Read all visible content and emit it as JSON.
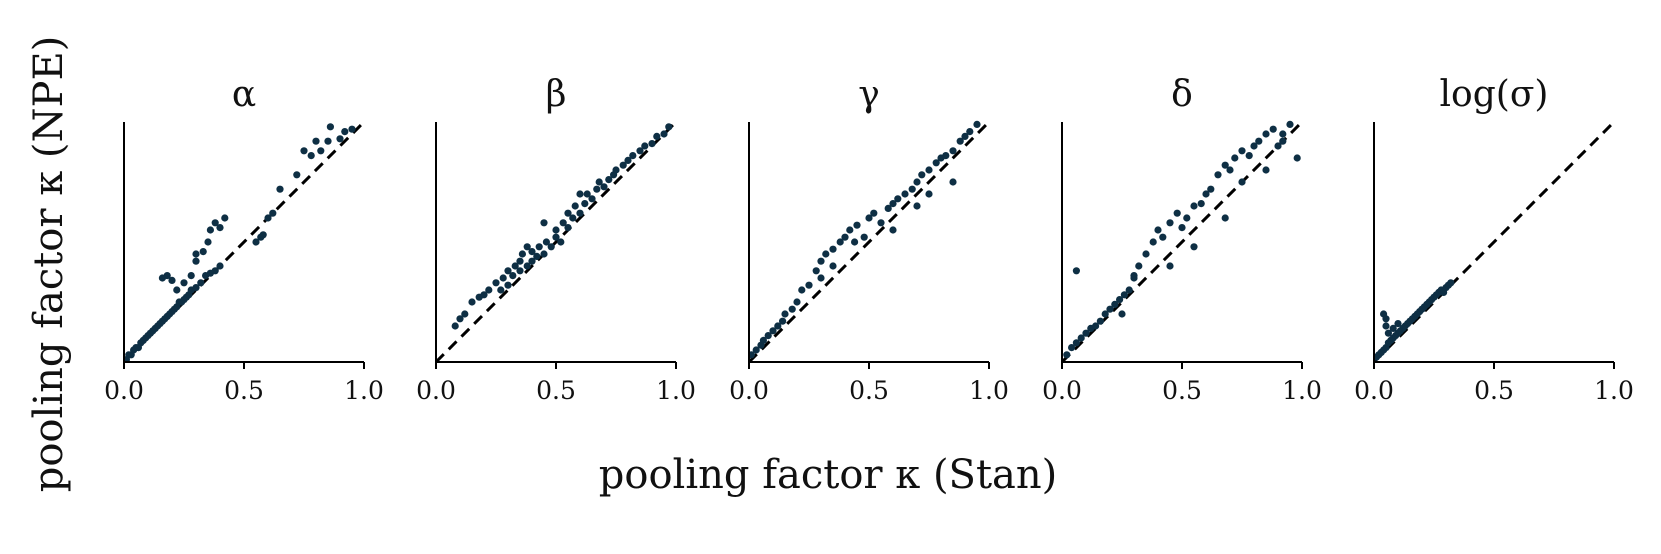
{
  "figure": {
    "xlabel": "pooling factor κ (Stan)",
    "ylabel": "pooling factor κ (NPE)",
    "point_color": "#0e2f44",
    "line_color": "#000000"
  },
  "chart_data": [
    {
      "type": "scatter",
      "title": "α",
      "xlim": [
        0,
        1
      ],
      "ylim": [
        0,
        1
      ],
      "xticks": [
        "0.0",
        "0.5",
        "1.0"
      ],
      "reference_line": "y = x (dashed)",
      "x": [
        0.01,
        0.02,
        0.03,
        0.04,
        0.05,
        0.06,
        0.07,
        0.08,
        0.09,
        0.1,
        0.11,
        0.12,
        0.13,
        0.14,
        0.15,
        0.16,
        0.17,
        0.18,
        0.19,
        0.2,
        0.21,
        0.22,
        0.23,
        0.24,
        0.25,
        0.26,
        0.27,
        0.28,
        0.3,
        0.32,
        0.34,
        0.36,
        0.38,
        0.4,
        0.16,
        0.18,
        0.2,
        0.22,
        0.25,
        0.28,
        0.3,
        0.33,
        0.36,
        0.38,
        0.4,
        0.42,
        0.3,
        0.35,
        0.55,
        0.57,
        0.58,
        0.6,
        0.62,
        0.65,
        0.72,
        0.75,
        0.78,
        0.8,
        0.82,
        0.85,
        0.86,
        0.9,
        0.92,
        0.95
      ],
      "y": [
        0.01,
        0.03,
        0.03,
        0.05,
        0.06,
        0.06,
        0.08,
        0.09,
        0.1,
        0.11,
        0.12,
        0.13,
        0.14,
        0.15,
        0.16,
        0.17,
        0.18,
        0.19,
        0.2,
        0.21,
        0.22,
        0.23,
        0.25,
        0.25,
        0.26,
        0.27,
        0.28,
        0.3,
        0.31,
        0.33,
        0.36,
        0.37,
        0.38,
        0.4,
        0.35,
        0.36,
        0.34,
        0.3,
        0.33,
        0.36,
        0.42,
        0.46,
        0.55,
        0.58,
        0.56,
        0.6,
        0.45,
        0.5,
        0.5,
        0.52,
        0.53,
        0.6,
        0.62,
        0.72,
        0.78,
        0.88,
        0.86,
        0.92,
        0.88,
        0.92,
        0.98,
        0.93,
        0.96,
        0.97
      ]
    },
    {
      "type": "scatter",
      "title": "β",
      "xlim": [
        0,
        1
      ],
      "ylim": [
        0,
        1
      ],
      "xticks": [
        "0.0",
        "0.5",
        "1.0"
      ],
      "reference_line": "y = x (dashed)",
      "x": [
        0.08,
        0.1,
        0.12,
        0.15,
        0.18,
        0.2,
        0.22,
        0.25,
        0.27,
        0.28,
        0.3,
        0.3,
        0.32,
        0.33,
        0.35,
        0.35,
        0.36,
        0.38,
        0.4,
        0.4,
        0.42,
        0.43,
        0.45,
        0.46,
        0.48,
        0.5,
        0.5,
        0.52,
        0.53,
        0.55,
        0.55,
        0.57,
        0.58,
        0.6,
        0.62,
        0.63,
        0.65,
        0.67,
        0.68,
        0.7,
        0.72,
        0.74,
        0.75,
        0.78,
        0.8,
        0.82,
        0.85,
        0.87,
        0.9,
        0.92,
        0.95,
        0.97,
        0.6,
        0.45,
        0.38
      ],
      "y": [
        0.15,
        0.18,
        0.2,
        0.25,
        0.27,
        0.28,
        0.3,
        0.33,
        0.3,
        0.35,
        0.32,
        0.38,
        0.36,
        0.4,
        0.38,
        0.42,
        0.45,
        0.4,
        0.42,
        0.46,
        0.44,
        0.48,
        0.45,
        0.5,
        0.48,
        0.52,
        0.55,
        0.5,
        0.58,
        0.56,
        0.62,
        0.6,
        0.65,
        0.62,
        0.66,
        0.7,
        0.68,
        0.72,
        0.75,
        0.73,
        0.76,
        0.78,
        0.8,
        0.82,
        0.84,
        0.86,
        0.88,
        0.9,
        0.91,
        0.94,
        0.95,
        0.98,
        0.7,
        0.58,
        0.48
      ]
    },
    {
      "type": "scatter",
      "title": "γ",
      "xlim": [
        0,
        1
      ],
      "ylim": [
        0,
        1
      ],
      "xticks": [
        "0.0",
        "0.5",
        "1.0"
      ],
      "reference_line": "y = x (dashed)",
      "x": [
        0.01,
        0.03,
        0.05,
        0.06,
        0.08,
        0.1,
        0.12,
        0.14,
        0.15,
        0.18,
        0.2,
        0.22,
        0.25,
        0.28,
        0.3,
        0.32,
        0.35,
        0.38,
        0.4,
        0.42,
        0.44,
        0.45,
        0.48,
        0.5,
        0.52,
        0.55,
        0.58,
        0.6,
        0.62,
        0.65,
        0.68,
        0.7,
        0.72,
        0.75,
        0.78,
        0.8,
        0.82,
        0.85,
        0.88,
        0.9,
        0.92,
        0.95,
        0.3,
        0.35,
        0.6,
        0.7,
        0.75,
        0.85
      ],
      "y": [
        0.03,
        0.05,
        0.07,
        0.09,
        0.11,
        0.13,
        0.15,
        0.17,
        0.2,
        0.22,
        0.25,
        0.3,
        0.32,
        0.38,
        0.42,
        0.45,
        0.47,
        0.5,
        0.52,
        0.55,
        0.5,
        0.57,
        0.52,
        0.6,
        0.62,
        0.58,
        0.64,
        0.66,
        0.68,
        0.7,
        0.72,
        0.75,
        0.78,
        0.8,
        0.83,
        0.85,
        0.86,
        0.88,
        0.92,
        0.94,
        0.96,
        0.99,
        0.35,
        0.4,
        0.55,
        0.65,
        0.7,
        0.75
      ]
    },
    {
      "type": "scatter",
      "title": "δ",
      "xlim": [
        0,
        1
      ],
      "ylim": [
        0,
        1
      ],
      "xticks": [
        "0.0",
        "0.5",
        "1.0"
      ],
      "reference_line": "y = x (dashed)",
      "x": [
        0.02,
        0.04,
        0.06,
        0.08,
        0.1,
        0.12,
        0.14,
        0.16,
        0.18,
        0.2,
        0.22,
        0.24,
        0.26,
        0.28,
        0.3,
        0.32,
        0.35,
        0.38,
        0.4,
        0.42,
        0.45,
        0.48,
        0.5,
        0.52,
        0.55,
        0.58,
        0.6,
        0.62,
        0.65,
        0.68,
        0.7,
        0.72,
        0.75,
        0.78,
        0.8,
        0.82,
        0.85,
        0.88,
        0.9,
        0.92,
        0.95,
        0.98,
        0.06,
        0.25,
        0.3,
        0.45,
        0.55,
        0.68,
        0.75,
        0.85,
        0.92
      ],
      "y": [
        0.03,
        0.06,
        0.08,
        0.1,
        0.12,
        0.14,
        0.15,
        0.17,
        0.2,
        0.22,
        0.24,
        0.26,
        0.28,
        0.3,
        0.36,
        0.4,
        0.45,
        0.5,
        0.55,
        0.52,
        0.58,
        0.62,
        0.56,
        0.6,
        0.65,
        0.66,
        0.7,
        0.72,
        0.78,
        0.82,
        0.8,
        0.85,
        0.88,
        0.86,
        0.9,
        0.92,
        0.95,
        0.97,
        0.9,
        0.95,
        0.99,
        0.85,
        0.38,
        0.2,
        0.35,
        0.4,
        0.48,
        0.6,
        0.75,
        0.8,
        0.92
      ]
    },
    {
      "type": "scatter",
      "title": "log(σ)",
      "xlim": [
        0,
        1
      ],
      "ylim": [
        0,
        1
      ],
      "xticks": [
        "0.0",
        "0.5",
        "1.0"
      ],
      "reference_line": "y = x (dashed)",
      "x": [
        0.01,
        0.02,
        0.03,
        0.04,
        0.05,
        0.06,
        0.07,
        0.08,
        0.09,
        0.1,
        0.11,
        0.12,
        0.13,
        0.14,
        0.15,
        0.16,
        0.17,
        0.18,
        0.19,
        0.2,
        0.21,
        0.22,
        0.23,
        0.24,
        0.25,
        0.26,
        0.27,
        0.28,
        0.29,
        0.3,
        0.31,
        0.32,
        0.04,
        0.05,
        0.05,
        0.06,
        0.08,
        0.1
      ],
      "y": [
        0.02,
        0.03,
        0.04,
        0.05,
        0.06,
        0.08,
        0.09,
        0.1,
        0.11,
        0.12,
        0.13,
        0.14,
        0.15,
        0.16,
        0.17,
        0.18,
        0.19,
        0.2,
        0.21,
        0.22,
        0.23,
        0.24,
        0.25,
        0.26,
        0.27,
        0.28,
        0.29,
        0.3,
        0.29,
        0.31,
        0.32,
        0.33,
        0.2,
        0.18,
        0.15,
        0.12,
        0.14,
        0.16
      ]
    }
  ]
}
